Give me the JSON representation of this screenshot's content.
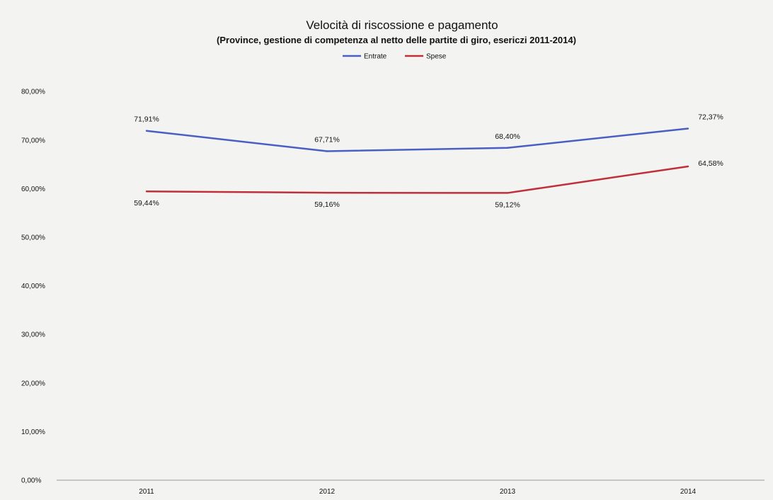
{
  "chart_data": {
    "type": "line",
    "title": "Velocità di riscossione e pagamento",
    "subtitle": "(Province, gestione di competenza al netto delle partite di giro, esericzi 2011-2014)",
    "xlabel": "",
    "ylabel": "",
    "categories": [
      "2011",
      "2012",
      "2013",
      "2014"
    ],
    "ylim": [
      0,
      80
    ],
    "ytick_labels": [
      "0,00%",
      "10,00%",
      "20,00%",
      "30,00%",
      "40,00%",
      "50,00%",
      "60,00%",
      "70,00%",
      "80,00%"
    ],
    "ytick_values": [
      0,
      10,
      20,
      30,
      40,
      50,
      60,
      70,
      80
    ],
    "grid": false,
    "legend_position": "top-center",
    "series": [
      {
        "name": "Entrate",
        "color": "#4a5fc1",
        "values": [
          71.91,
          67.71,
          68.4,
          72.37
        ],
        "labels": [
          "71,91%",
          "67,71%",
          "68,40%",
          "72,37%"
        ],
        "label_position": "above"
      },
      {
        "name": "Spese",
        "color": "#c0303a",
        "values": [
          59.44,
          59.16,
          59.12,
          64.58
        ],
        "labels": [
          "59,44%",
          "59,16%",
          "59,12%",
          "64,58%"
        ],
        "label_position": "below"
      }
    ]
  }
}
